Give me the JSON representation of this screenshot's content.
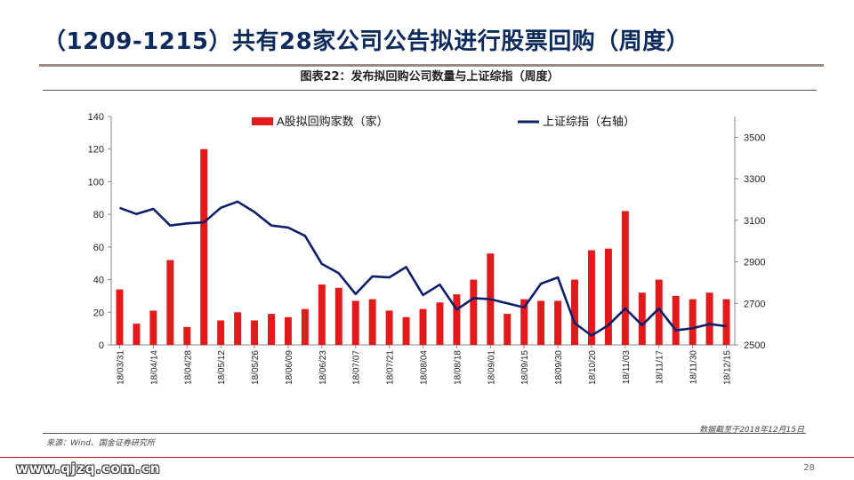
{
  "page": {
    "title": "（1209-1215）共有28家公司公告拟进行股票回购（周度）",
    "figure_title": "图表22：发布拟回购公司数量与上证综指（周度）",
    "data_cutoff": "数据截至于2018年12月15日",
    "source": "来源：Wind、国金证券研究所",
    "watermark": "www.qjzq.com.cn",
    "page_number": "28"
  },
  "colors": {
    "title": "#0d2a5c",
    "bar": "#e31a1c",
    "line": "#0d1f6b",
    "accent_rule": "#b01b1b"
  },
  "chart_data": {
    "type": "bar",
    "legend_position": "top",
    "grid": false,
    "x_tick_labels": [
      "18/03/31",
      "18/04/14",
      "18/04/28",
      "18/05/12",
      "18/05/26",
      "18/06/09",
      "18/06/23",
      "18/07/07",
      "18/07/21",
      "18/08/04",
      "18/08/18",
      "18/09/01",
      "18/09/15",
      "18/09/30",
      "18/10/20",
      "18/11/03",
      "18/11/17",
      "18/11/30",
      "18/12/15"
    ],
    "weeks_between_ticks": 2,
    "y_left": {
      "min": 0,
      "max": 140,
      "ticks": [
        0,
        20,
        40,
        60,
        80,
        100,
        120,
        140
      ]
    },
    "y_right": {
      "min": 2500,
      "max": 3600,
      "ticks": [
        2500,
        2700,
        2900,
        3100,
        3300,
        3500
      ]
    },
    "series": [
      {
        "name": "A股拟回购家数（家）",
        "type": "bar",
        "axis": "left",
        "values": [
          34,
          13,
          21,
          52,
          11,
          120,
          15,
          20,
          15,
          19,
          17,
          22,
          37,
          35,
          27,
          28,
          21,
          17,
          22,
          26,
          31,
          40,
          56,
          19,
          28,
          27,
          27,
          40,
          58,
          59,
          82,
          32,
          40,
          30,
          28,
          32,
          28
        ]
      },
      {
        "name": "上证综指（右轴）",
        "type": "line",
        "axis": "right",
        "values": [
          3160,
          3130,
          3155,
          3075,
          3085,
          3090,
          3160,
          3190,
          3140,
          3075,
          3065,
          3025,
          2890,
          2845,
          2745,
          2830,
          2825,
          2875,
          2740,
          2790,
          2670,
          2725,
          2720,
          2700,
          2680,
          2795,
          2825,
          2605,
          2545,
          2595,
          2675,
          2595,
          2675,
          2570,
          2580,
          2600,
          2590
        ]
      }
    ]
  }
}
